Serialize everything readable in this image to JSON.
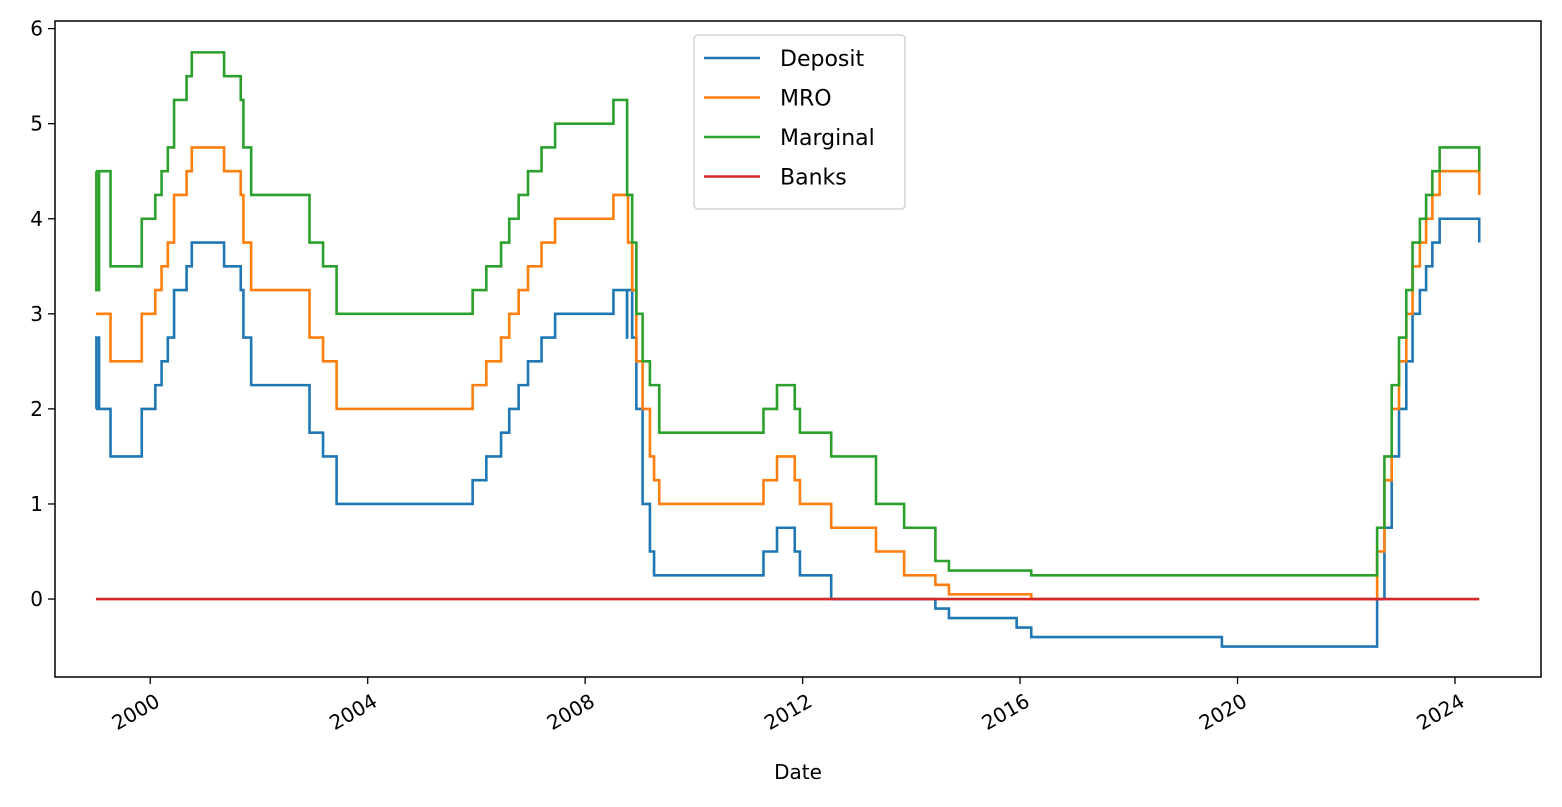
{
  "chart_data": {
    "type": "line",
    "step": true,
    "title": "",
    "xlabel": "Date",
    "ylabel": "",
    "xlim": [
      "1998-04-01",
      "2025-08-01"
    ],
    "ylim": [
      -0.82,
      6.08
    ],
    "x_ticks": [
      "2000",
      "2004",
      "2008",
      "2012",
      "2016",
      "2020",
      "2024"
    ],
    "y_ticks": [
      "0",
      "1",
      "2",
      "3",
      "4",
      "5",
      "6"
    ],
    "grid": false,
    "legend_position": "top-center",
    "series": [
      {
        "name": "Deposit",
        "color": "#1f77b4",
        "points": [
          [
            "1999-01-01",
            2.0
          ],
          [
            "1999-01-04",
            2.75
          ],
          [
            "1999-01-22",
            2.0
          ],
          [
            "1999-04-09",
            1.5
          ],
          [
            "1999-11-05",
            2.0
          ],
          [
            "2000-02-04",
            2.25
          ],
          [
            "2000-03-17",
            2.5
          ],
          [
            "2000-04-28",
            2.75
          ],
          [
            "2000-06-09",
            3.25
          ],
          [
            "2000-09-01",
            3.5
          ],
          [
            "2000-10-06",
            3.75
          ],
          [
            "2001-05-11",
            3.5
          ],
          [
            "2001-08-31",
            3.25
          ],
          [
            "2001-09-18",
            2.75
          ],
          [
            "2001-11-09",
            2.25
          ],
          [
            "2002-12-06",
            1.75
          ],
          [
            "2003-03-07",
            1.5
          ],
          [
            "2003-06-06",
            1.0
          ],
          [
            "2005-12-06",
            1.25
          ],
          [
            "2006-03-08",
            1.5
          ],
          [
            "2006-06-15",
            1.75
          ],
          [
            "2006-08-09",
            2.0
          ],
          [
            "2006-10-11",
            2.25
          ],
          [
            "2006-12-13",
            2.5
          ],
          [
            "2007-03-14",
            2.75
          ],
          [
            "2007-06-13",
            3.0
          ],
          [
            "2008-07-09",
            3.25
          ],
          [
            "2008-10-08",
            2.75
          ],
          [
            "2008-10-09",
            3.25
          ],
          [
            "2008-11-12",
            2.75
          ],
          [
            "2008-12-10",
            2.0
          ],
          [
            "2009-01-21",
            1.0
          ],
          [
            "2009-03-11",
            0.5
          ],
          [
            "2009-04-08",
            0.25
          ],
          [
            "2011-04-13",
            0.5
          ],
          [
            "2011-07-13",
            0.75
          ],
          [
            "2011-11-09",
            0.5
          ],
          [
            "2011-12-14",
            0.25
          ],
          [
            "2012-07-11",
            0.0
          ],
          [
            "2014-06-11",
            -0.1
          ],
          [
            "2014-09-10",
            -0.2
          ],
          [
            "2015-12-09",
            -0.3
          ],
          [
            "2016-03-16",
            -0.4
          ],
          [
            "2019-09-18",
            -0.5
          ],
          [
            "2022-07-27",
            0.0
          ],
          [
            "2022-09-14",
            0.75
          ],
          [
            "2022-11-02",
            1.5
          ],
          [
            "2022-12-21",
            2.0
          ],
          [
            "2023-02-08",
            2.5
          ],
          [
            "2023-03-22",
            3.0
          ],
          [
            "2023-05-10",
            3.25
          ],
          [
            "2023-06-21",
            3.5
          ],
          [
            "2023-08-02",
            3.75
          ],
          [
            "2023-09-20",
            4.0
          ],
          [
            "2024-06-12",
            3.75
          ]
        ]
      },
      {
        "name": "MRO",
        "color": "#ff7f0e",
        "points": [
          [
            "1999-01-01",
            3.0
          ],
          [
            "1999-04-09",
            2.5
          ],
          [
            "1999-11-05",
            3.0
          ],
          [
            "2000-02-04",
            3.25
          ],
          [
            "2000-03-17",
            3.5
          ],
          [
            "2000-04-28",
            3.75
          ],
          [
            "2000-06-09",
            4.25
          ],
          [
            "2000-09-01",
            4.5
          ],
          [
            "2000-10-06",
            4.75
          ],
          [
            "2001-05-11",
            4.5
          ],
          [
            "2001-08-31",
            4.25
          ],
          [
            "2001-09-18",
            3.75
          ],
          [
            "2001-11-09",
            3.25
          ],
          [
            "2002-12-06",
            2.75
          ],
          [
            "2003-03-07",
            2.5
          ],
          [
            "2003-06-06",
            2.0
          ],
          [
            "2005-12-06",
            2.25
          ],
          [
            "2006-03-08",
            2.5
          ],
          [
            "2006-06-15",
            2.75
          ],
          [
            "2006-08-09",
            3.0
          ],
          [
            "2006-10-11",
            3.25
          ],
          [
            "2006-12-13",
            3.5
          ],
          [
            "2007-03-14",
            3.75
          ],
          [
            "2007-06-13",
            4.0
          ],
          [
            "2008-07-09",
            4.25
          ],
          [
            "2008-10-15",
            3.75
          ],
          [
            "2008-11-12",
            3.25
          ],
          [
            "2008-12-10",
            2.5
          ],
          [
            "2009-01-21",
            2.0
          ],
          [
            "2009-03-11",
            1.5
          ],
          [
            "2009-04-08",
            1.25
          ],
          [
            "2009-05-13",
            1.0
          ],
          [
            "2011-04-13",
            1.25
          ],
          [
            "2011-07-13",
            1.5
          ],
          [
            "2011-11-09",
            1.25
          ],
          [
            "2011-12-14",
            1.0
          ],
          [
            "2012-07-11",
            0.75
          ],
          [
            "2013-05-08",
            0.5
          ],
          [
            "2013-11-13",
            0.25
          ],
          [
            "2014-06-11",
            0.15
          ],
          [
            "2014-09-10",
            0.05
          ],
          [
            "2016-03-16",
            0.0
          ],
          [
            "2022-07-27",
            0.5
          ],
          [
            "2022-09-14",
            1.25
          ],
          [
            "2022-11-02",
            2.0
          ],
          [
            "2022-12-21",
            2.5
          ],
          [
            "2023-02-08",
            3.0
          ],
          [
            "2023-03-22",
            3.5
          ],
          [
            "2023-05-10",
            3.75
          ],
          [
            "2023-06-21",
            4.0
          ],
          [
            "2023-08-02",
            4.25
          ],
          [
            "2023-09-20",
            4.5
          ],
          [
            "2024-06-12",
            4.25
          ]
        ]
      },
      {
        "name": "Marginal",
        "color": "#2ca02c",
        "points": [
          [
            "1999-01-01",
            4.5
          ],
          [
            "1999-01-04",
            3.25
          ],
          [
            "1999-01-22",
            4.5
          ],
          [
            "1999-04-09",
            3.5
          ],
          [
            "1999-11-05",
            4.0
          ],
          [
            "2000-02-04",
            4.25
          ],
          [
            "2000-03-17",
            4.5
          ],
          [
            "2000-04-28",
            4.75
          ],
          [
            "2000-06-09",
            5.25
          ],
          [
            "2000-09-01",
            5.5
          ],
          [
            "2000-10-06",
            5.75
          ],
          [
            "2001-05-11",
            5.5
          ],
          [
            "2001-08-31",
            5.25
          ],
          [
            "2001-09-18",
            4.75
          ],
          [
            "2001-11-09",
            4.25
          ],
          [
            "2002-12-06",
            3.75
          ],
          [
            "2003-03-07",
            3.5
          ],
          [
            "2003-06-06",
            3.0
          ],
          [
            "2005-12-06",
            3.25
          ],
          [
            "2006-03-08",
            3.5
          ],
          [
            "2006-06-15",
            3.75
          ],
          [
            "2006-08-09",
            4.0
          ],
          [
            "2006-10-11",
            4.25
          ],
          [
            "2006-12-13",
            4.5
          ],
          [
            "2007-03-14",
            4.75
          ],
          [
            "2007-06-13",
            5.0
          ],
          [
            "2008-07-09",
            5.25
          ],
          [
            "2008-10-09",
            4.25
          ],
          [
            "2008-11-12",
            3.75
          ],
          [
            "2008-12-10",
            3.0
          ],
          [
            "2009-01-21",
            2.5
          ],
          [
            "2009-03-11",
            2.25
          ],
          [
            "2009-05-13",
            1.75
          ],
          [
            "2011-04-13",
            2.0
          ],
          [
            "2011-07-13",
            2.25
          ],
          [
            "2011-11-09",
            2.0
          ],
          [
            "2011-12-14",
            1.75
          ],
          [
            "2012-07-11",
            1.5
          ],
          [
            "2013-05-08",
            1.0
          ],
          [
            "2013-11-13",
            0.75
          ],
          [
            "2014-06-11",
            0.4
          ],
          [
            "2014-09-10",
            0.3
          ],
          [
            "2016-03-16",
            0.25
          ],
          [
            "2022-07-27",
            0.75
          ],
          [
            "2022-09-14",
            1.5
          ],
          [
            "2022-11-02",
            2.25
          ],
          [
            "2022-12-21",
            2.75
          ],
          [
            "2023-02-08",
            3.25
          ],
          [
            "2023-03-22",
            3.75
          ],
          [
            "2023-05-10",
            4.0
          ],
          [
            "2023-06-21",
            4.25
          ],
          [
            "2023-08-02",
            4.5
          ],
          [
            "2023-09-20",
            4.75
          ],
          [
            "2024-06-12",
            4.5
          ]
        ]
      },
      {
        "name": "Banks",
        "color": "#d62728",
        "points": [
          [
            "1999-01-01",
            0.0
          ],
          [
            "2024-06-12",
            0.0
          ]
        ]
      }
    ]
  }
}
